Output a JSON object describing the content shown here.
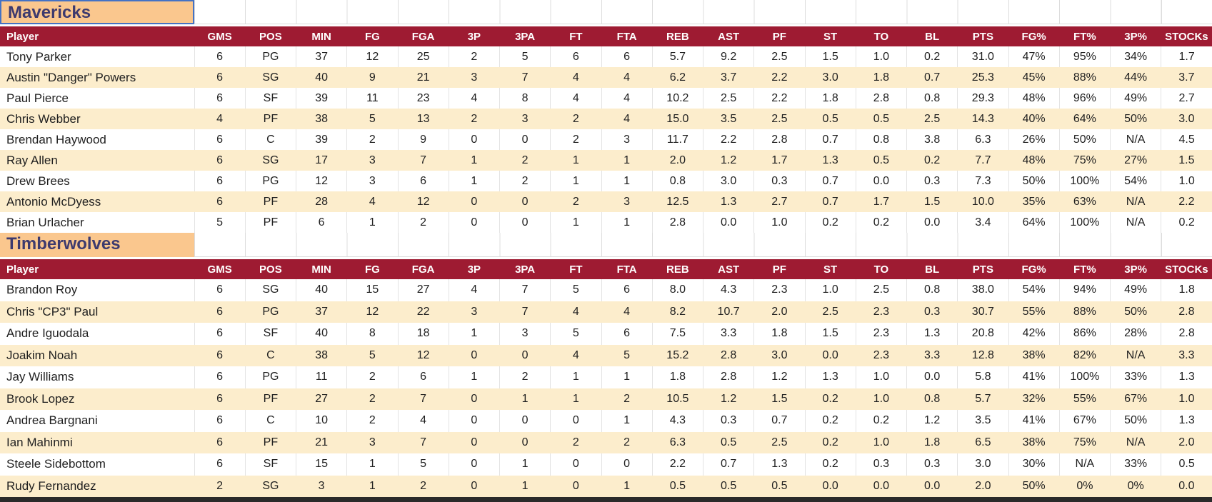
{
  "columns": [
    "Player",
    "GMS",
    "POS",
    "MIN",
    "FG",
    "FGA",
    "3P",
    "3PA",
    "FT",
    "FTA",
    "REB",
    "AST",
    "PF",
    "ST",
    "TO",
    "BL",
    "PTS",
    "FG%",
    "FT%",
    "3P%",
    "STOCKs"
  ],
  "teams": [
    {
      "name": "Mavericks",
      "rows": [
        {
          "player": "Tony Parker",
          "values": [
            "6",
            "PG",
            "37",
            "12",
            "25",
            "2",
            "5",
            "6",
            "6",
            "5.7",
            "9.2",
            "2.5",
            "1.5",
            "1.0",
            "0.2",
            "31.0",
            "47%",
            "95%",
            "34%",
            "1.7"
          ]
        },
        {
          "player": "Austin \"Danger\" Powers",
          "values": [
            "6",
            "SG",
            "40",
            "9",
            "21",
            "3",
            "7",
            "4",
            "4",
            "6.2",
            "3.7",
            "2.2",
            "3.0",
            "1.8",
            "0.7",
            "25.3",
            "45%",
            "88%",
            "44%",
            "3.7"
          ]
        },
        {
          "player": "Paul Pierce",
          "values": [
            "6",
            "SF",
            "39",
            "11",
            "23",
            "4",
            "8",
            "4",
            "4",
            "10.2",
            "2.5",
            "2.2",
            "1.8",
            "2.8",
            "0.8",
            "29.3",
            "48%",
            "96%",
            "49%",
            "2.7"
          ]
        },
        {
          "player": "Chris Webber",
          "values": [
            "4",
            "PF",
            "38",
            "5",
            "13",
            "2",
            "3",
            "2",
            "4",
            "15.0",
            "3.5",
            "2.5",
            "0.5",
            "0.5",
            "2.5",
            "14.3",
            "40%",
            "64%",
            "50%",
            "3.0"
          ]
        },
        {
          "player": "Brendan Haywood",
          "values": [
            "6",
            "C",
            "39",
            "2",
            "9",
            "0",
            "0",
            "2",
            "3",
            "11.7",
            "2.2",
            "2.8",
            "0.7",
            "0.8",
            "3.8",
            "6.3",
            "26%",
            "50%",
            "N/A",
            "4.5"
          ]
        },
        {
          "player": "Ray Allen",
          "values": [
            "6",
            "SG",
            "17",
            "3",
            "7",
            "1",
            "2",
            "1",
            "1",
            "2.0",
            "1.2",
            "1.7",
            "1.3",
            "0.5",
            "0.2",
            "7.7",
            "48%",
            "75%",
            "27%",
            "1.5"
          ]
        },
        {
          "player": "Drew Brees",
          "values": [
            "6",
            "PG",
            "12",
            "3",
            "6",
            "1",
            "2",
            "1",
            "1",
            "0.8",
            "3.0",
            "0.3",
            "0.7",
            "0.0",
            "0.3",
            "7.3",
            "50%",
            "100%",
            "54%",
            "1.0"
          ]
        },
        {
          "player": "Antonio McDyess",
          "values": [
            "6",
            "PF",
            "28",
            "4",
            "12",
            "0",
            "0",
            "2",
            "3",
            "12.5",
            "1.3",
            "2.7",
            "0.7",
            "1.7",
            "1.5",
            "10.0",
            "35%",
            "63%",
            "N/A",
            "2.2"
          ]
        },
        {
          "player": "Brian Urlacher",
          "values": [
            "5",
            "PF",
            "6",
            "1",
            "2",
            "0",
            "0",
            "1",
            "1",
            "2.8",
            "0.0",
            "1.0",
            "0.2",
            "0.2",
            "0.0",
            "3.4",
            "64%",
            "100%",
            "N/A",
            "0.2"
          ]
        }
      ]
    },
    {
      "name": "Timberwolves",
      "rows": [
        {
          "player": "Brandon Roy",
          "values": [
            "6",
            "SG",
            "40",
            "15",
            "27",
            "4",
            "7",
            "5",
            "6",
            "8.0",
            "4.3",
            "2.3",
            "1.0",
            "2.5",
            "0.8",
            "38.0",
            "54%",
            "94%",
            "49%",
            "1.8"
          ]
        },
        {
          "player": "Chris \"CP3\" Paul",
          "values": [
            "6",
            "PG",
            "37",
            "12",
            "22",
            "3",
            "7",
            "4",
            "4",
            "8.2",
            "10.7",
            "2.0",
            "2.5",
            "2.3",
            "0.3",
            "30.7",
            "55%",
            "88%",
            "50%",
            "2.8"
          ]
        },
        {
          "player": "Andre Iguodala",
          "values": [
            "6",
            "SF",
            "40",
            "8",
            "18",
            "1",
            "3",
            "5",
            "6",
            "7.5",
            "3.3",
            "1.8",
            "1.5",
            "2.3",
            "1.3",
            "20.8",
            "42%",
            "86%",
            "28%",
            "2.8"
          ]
        },
        {
          "player": "Joakim Noah",
          "values": [
            "6",
            "C",
            "38",
            "5",
            "12",
            "0",
            "0",
            "4",
            "5",
            "15.2",
            "2.8",
            "3.0",
            "0.0",
            "2.3",
            "3.3",
            "12.8",
            "38%",
            "82%",
            "N/A",
            "3.3"
          ]
        },
        {
          "player": "Jay Williams",
          "values": [
            "6",
            "PG",
            "11",
            "2",
            "6",
            "1",
            "2",
            "1",
            "1",
            "1.8",
            "2.8",
            "1.2",
            "1.3",
            "1.0",
            "0.0",
            "5.8",
            "41%",
            "100%",
            "33%",
            "1.3"
          ]
        },
        {
          "player": "Brook Lopez",
          "values": [
            "6",
            "PF",
            "27",
            "2",
            "7",
            "0",
            "1",
            "1",
            "2",
            "10.5",
            "1.2",
            "1.5",
            "0.2",
            "1.0",
            "0.8",
            "5.7",
            "32%",
            "55%",
            "67%",
            "1.0"
          ]
        },
        {
          "player": "Andrea Bargnani",
          "values": [
            "6",
            "C",
            "10",
            "2",
            "4",
            "0",
            "0",
            "0",
            "1",
            "4.3",
            "0.3",
            "0.7",
            "0.2",
            "0.2",
            "1.2",
            "3.5",
            "41%",
            "67%",
            "50%",
            "1.3"
          ]
        },
        {
          "player": "Ian Mahinmi",
          "values": [
            "6",
            "PF",
            "21",
            "3",
            "7",
            "0",
            "0",
            "2",
            "2",
            "6.3",
            "0.5",
            "2.5",
            "0.2",
            "1.0",
            "1.8",
            "6.5",
            "38%",
            "75%",
            "N/A",
            "2.0"
          ]
        },
        {
          "player": "Steele Sidebottom",
          "values": [
            "6",
            "SF",
            "15",
            "1",
            "5",
            "0",
            "1",
            "0",
            "0",
            "2.2",
            "0.7",
            "1.3",
            "0.2",
            "0.3",
            "0.3",
            "3.0",
            "30%",
            "N/A",
            "33%",
            "0.5"
          ]
        },
        {
          "player": "Rudy Fernandez",
          "values": [
            "2",
            "SG",
            "3",
            "1",
            "2",
            "0",
            "1",
            "0",
            "1",
            "0.5",
            "0.5",
            "0.5",
            "0.0",
            "0.0",
            "0.0",
            "2.0",
            "50%",
            "0%",
            "0%",
            "0.0"
          ]
        }
      ]
    }
  ],
  "colors": {
    "header_maroon": "#9E1B32",
    "band_cream": "#FCEDCC",
    "title_orange": "#FAC78E",
    "title_text": "#3D3A6E",
    "selection_blue": "#4472C4"
  }
}
